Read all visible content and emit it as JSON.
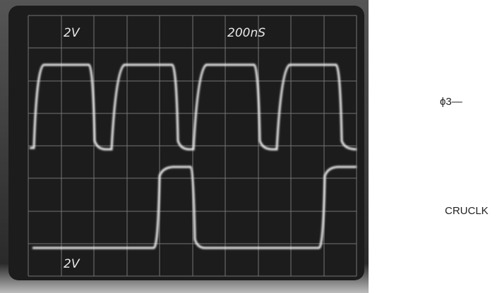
{
  "scope": {
    "channel1_scale": "2V",
    "timebase": "200nS",
    "channel2_scale": "2V"
  },
  "signals": [
    {
      "label": "ϕ3—"
    },
    {
      "label": "CRUCLK"
    }
  ]
}
